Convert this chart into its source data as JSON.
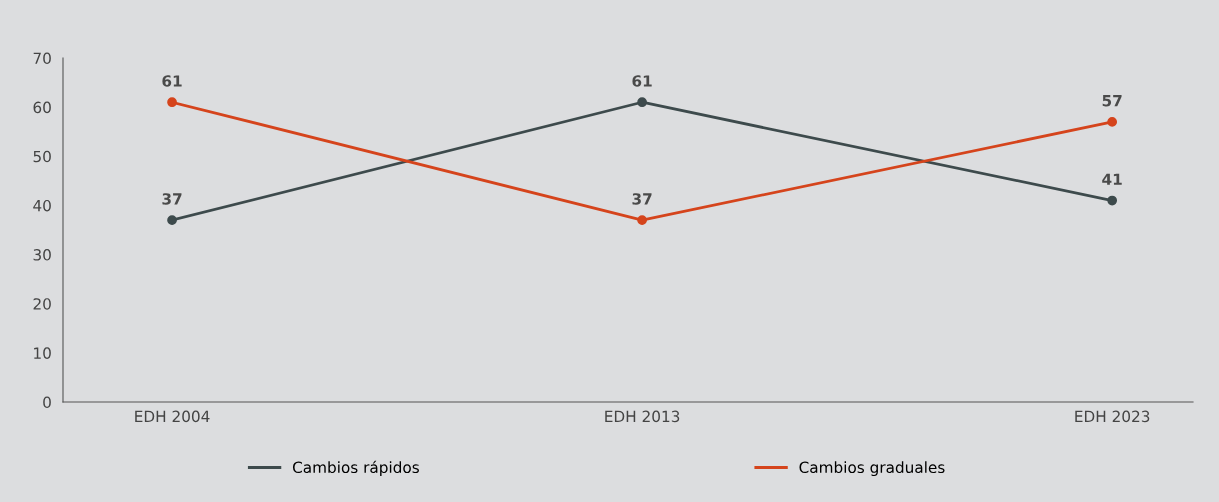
{
  "chart_data": {
    "type": "line",
    "categories": [
      "EDH 2004",
      "EDH 2013",
      "EDH 2023"
    ],
    "series": [
      {
        "name": "Cambios rápidos",
        "color": "#3d4a4c",
        "values": [
          37,
          61,
          41
        ]
      },
      {
        "name": "Cambios graduales",
        "color": "#d5441c",
        "values": [
          61,
          37,
          57
        ]
      }
    ],
    "ylim": [
      0,
      70
    ],
    "yticks": [
      0,
      10,
      20,
      30,
      40,
      50,
      60,
      70
    ],
    "data_labels": true,
    "legend": "bottom",
    "marker": "circle",
    "line_style": "solid",
    "grid": false
  }
}
